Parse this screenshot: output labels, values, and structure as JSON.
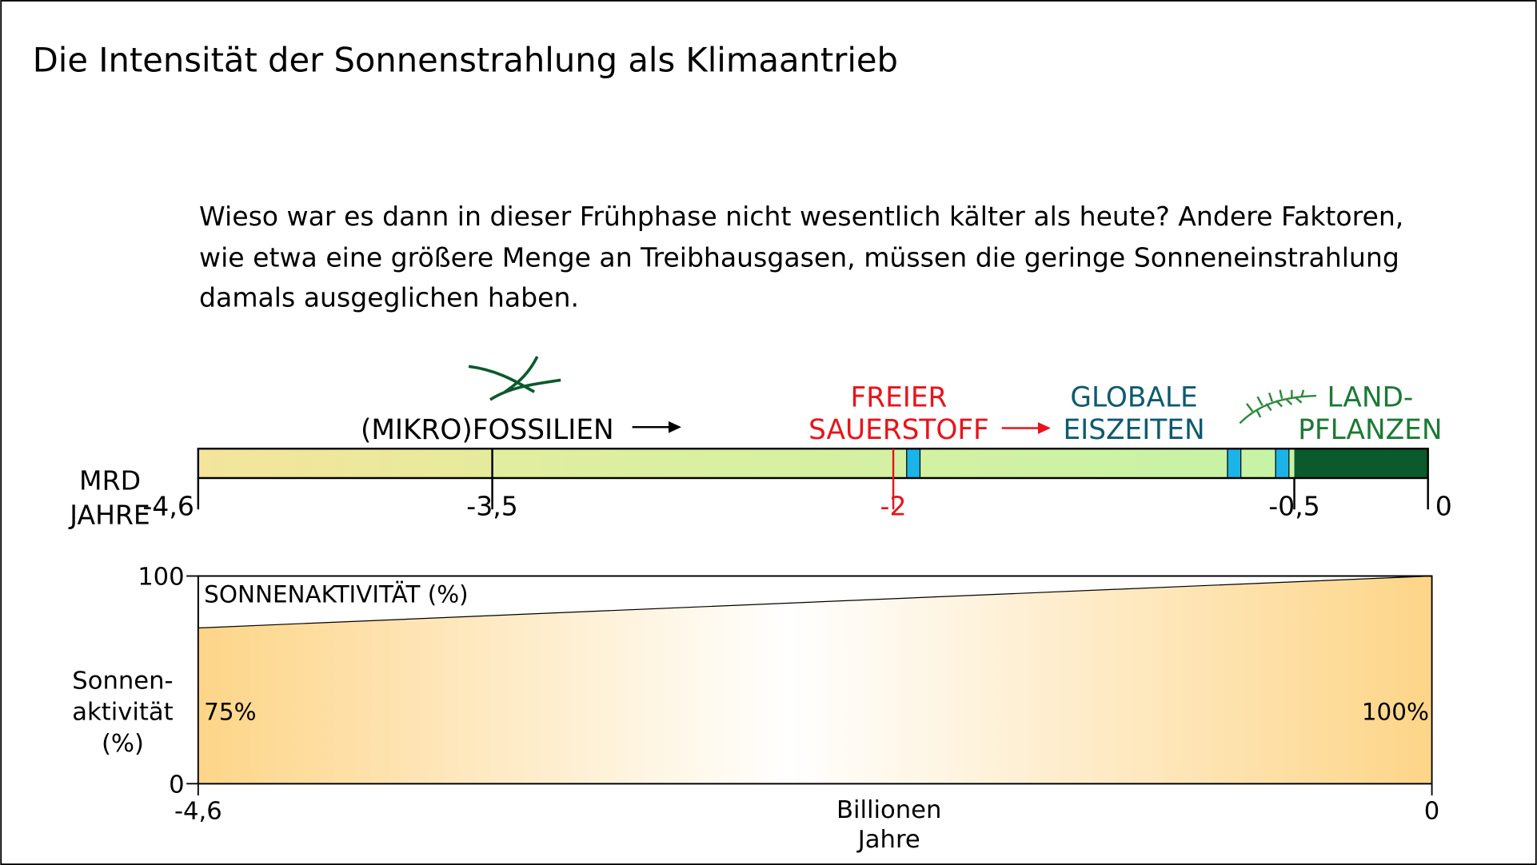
{
  "title": "Die Intensität der Sonnenstrahlung als Klimaantrieb",
  "paragraph": [
    "Wieso war es dann in dieser Frühphase nicht wesentlich kälter als heute? Andere Faktoren,",
    "wie etwa eine größere Menge an Treibhausgasen, müssen die geringe Sonneneinstrahlung",
    "damals ausgeglichen haben."
  ],
  "timeline": {
    "axis_label": [
      "MRD",
      "JAHRE"
    ],
    "xlim": [
      -4.6,
      0
    ],
    "xticks": [
      {
        "value": -4.6,
        "label": "-4,6"
      },
      {
        "value": -3.5,
        "label": "-3,5"
      },
      -2,
      {
        "value": -0.5,
        "label": "-0,5"
      },
      0
    ],
    "periods": [
      {
        "start": -4.6,
        "end": -3.5,
        "colors": [
          "#f4e49c",
          "#e6eb9c"
        ]
      },
      {
        "start": -3.5,
        "end": -0.5,
        "colors": [
          "#e1ee9e",
          "#c6f3a6"
        ]
      },
      {
        "start": -0.5,
        "end": 0,
        "colors": [
          "#0b5a2b",
          "#0b5a2b"
        ]
      }
    ],
    "ice_ages": [
      [
        -1.95,
        -1.9
      ],
      [
        -0.75,
        -0.7
      ],
      [
        -0.57,
        -0.52
      ]
    ],
    "ice_color": "#1ab4e8",
    "events": [
      {
        "at": -3.5,
        "lines": [
          "(MIKRO)FOSSILIEN"
        ],
        "color": "#000000",
        "line": true
      },
      {
        "at": -2,
        "lines": [
          "FREIER",
          "SAUERSTOFF"
        ],
        "color": "#e8141b",
        "line": true
      },
      {
        "at": -0.75,
        "lines": [
          "GLOBALE",
          "EISZEITEN"
        ],
        "color": "#0e5a70",
        "line": false
      },
      {
        "at": -0.5,
        "lines": [
          "LAND-",
          "PFLANZEN"
        ],
        "color": "#1b7a35",
        "line": false
      }
    ]
  },
  "chart_data": {
    "type": "area",
    "ylabel": [
      "Sonnen-",
      "aktivität",
      "(%)"
    ],
    "xlabel": [
      "Billionen",
      "Jahre"
    ],
    "x": [
      -4.6,
      0
    ],
    "xlim": [
      -4.6,
      0
    ],
    "xticks": [
      {
        "value": -4.6,
        "label": "-4,6"
      },
      0
    ],
    "ylim": [
      0,
      100
    ],
    "yticks": [
      0,
      100
    ],
    "series": [
      {
        "name": "SONNENAKTIVITÄT (%)",
        "color": "#fdd588",
        "values": [
          75,
          100
        ],
        "value_labels": [
          "75%",
          "100%"
        ]
      }
    ]
  }
}
